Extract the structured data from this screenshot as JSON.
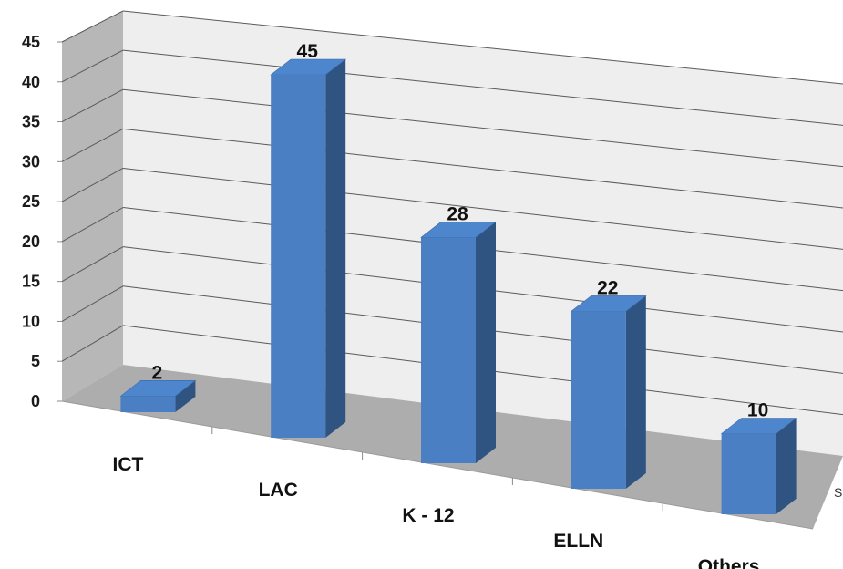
{
  "chart_data": {
    "type": "bar",
    "categories": [
      "ICT",
      "LAC",
      "K - 12",
      "ELLN",
      "Others"
    ],
    "values": [
      2,
      45,
      28,
      22,
      10
    ],
    "data_labels": [
      "2",
      "45",
      "28",
      "22",
      "10"
    ],
    "ylim": [
      0,
      45
    ],
    "yticks": [
      "0",
      "5",
      "10",
      "15",
      "20",
      "25",
      "30",
      "35",
      "40",
      "45"
    ],
    "grid": true,
    "series_axis_label": "S",
    "colors": {
      "bar_front": "#4A7FC4",
      "bar_top": "#4E86CE",
      "bar_side": "#2F5481",
      "back_wall": "#EEEEEE",
      "side_wall": "#B7B7B7",
      "floor": "#ADADAD",
      "gridline": "#5A5A5A"
    }
  }
}
